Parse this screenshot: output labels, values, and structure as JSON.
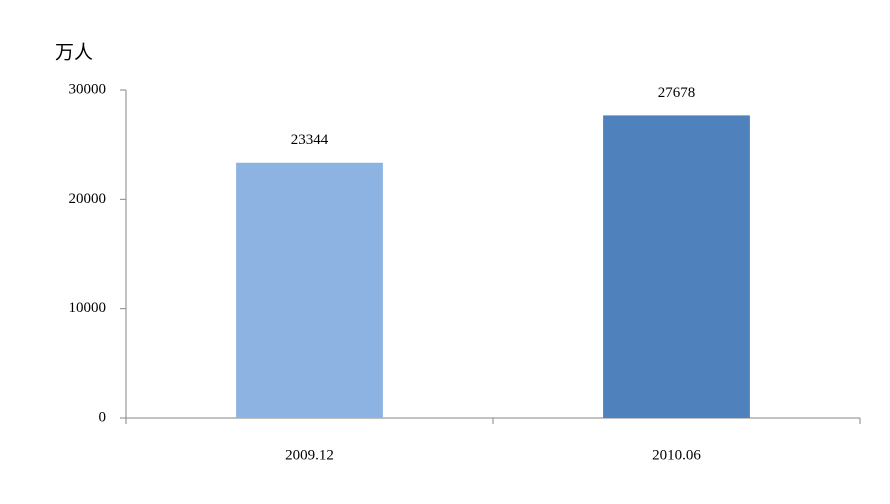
{
  "chart_data": {
    "type": "bar",
    "y_label": "万人",
    "categories": [
      "2009.12",
      "2010.06"
    ],
    "values": [
      23344,
      27678
    ],
    "colors": [
      "#8db3e2",
      "#4f81bd"
    ],
    "ylim": [
      0,
      30000
    ],
    "yticks": [
      0,
      10000,
      20000,
      30000
    ],
    "grid": false
  }
}
